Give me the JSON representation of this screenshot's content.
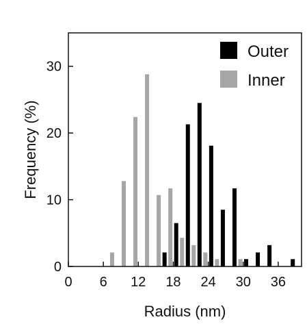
{
  "chart_data": {
    "type": "bar",
    "xlabel": "Radius (nm)",
    "ylabel": "Frequency (%)",
    "xlim": [
      0,
      40
    ],
    "ylim": [
      0,
      35
    ],
    "xticks": [
      0,
      6,
      12,
      18,
      24,
      30,
      36
    ],
    "yticks": [
      0,
      10,
      20,
      30
    ],
    "grid": false,
    "legend_position": "top-right",
    "series": [
      {
        "name": "Outer",
        "color": "#000000",
        "x": [
          16.5,
          18.5,
          20.5,
          22.5,
          24.5,
          26.5,
          28.5,
          30.5,
          32.5,
          34.5,
          38.5
        ],
        "values": [
          2.1,
          6.5,
          21.3,
          24.5,
          18.1,
          8.5,
          11.7,
          1.1,
          2.1,
          3.2,
          1.1
        ]
      },
      {
        "name": "Inner",
        "color": "#a6a6a6",
        "x": [
          7.5,
          9.5,
          11.5,
          13.5,
          15.5,
          17.5,
          19.5,
          21.5,
          23.5,
          25.5,
          29.5
        ],
        "values": [
          2.1,
          12.8,
          22.4,
          28.8,
          10.7,
          11.7,
          4.3,
          3.2,
          2.1,
          1.1,
          1.1
        ]
      }
    ]
  }
}
